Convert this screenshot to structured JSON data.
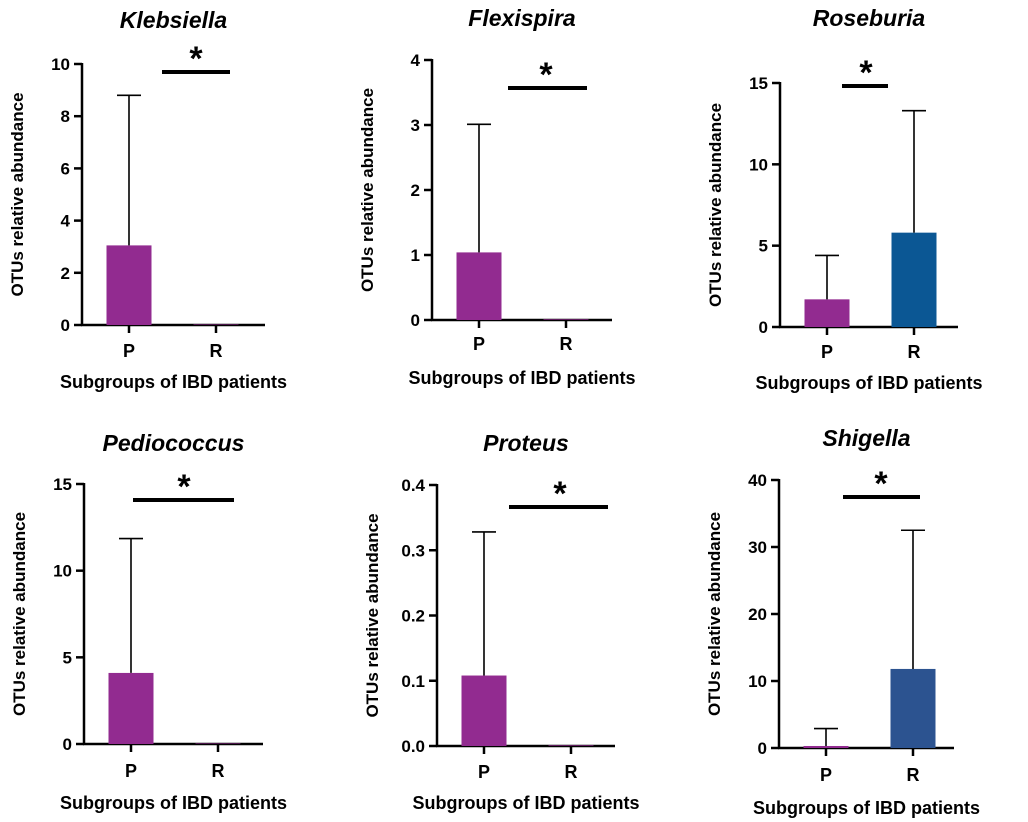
{
  "chart_data": [
    {
      "type": "bar",
      "title": "Klebsiella",
      "xlabel": "Subgroups of IBD patients",
      "ylabel": "OTUs relative abundance",
      "categories": [
        "P",
        "R"
      ],
      "values": [
        3.05,
        0.02
      ],
      "error_upper": [
        8.8,
        0.02
      ],
      "ylim": [
        0,
        10
      ],
      "yticks": [
        0,
        2,
        4,
        6,
        8,
        10
      ],
      "ytick_labels": [
        "0",
        "2",
        "4",
        "6",
        "8",
        "10"
      ],
      "significance": "*",
      "colors": [
        "#922B90",
        "#922B90"
      ],
      "grid": false,
      "legend": "none"
    },
    {
      "type": "bar",
      "title": "Flexispira",
      "xlabel": "Subgroups of IBD patients",
      "ylabel": "OTUs relative abundance",
      "categories": [
        "P",
        "R"
      ],
      "values": [
        1.04,
        0.01
      ],
      "error_upper": [
        3.01,
        0.01
      ],
      "ylim": [
        0,
        4
      ],
      "yticks": [
        0,
        1,
        2,
        3,
        4
      ],
      "ytick_labels": [
        "0",
        "1",
        "2",
        "3",
        "4"
      ],
      "significance": "*",
      "colors": [
        "#922B90",
        "#922B90"
      ],
      "grid": false,
      "legend": "none"
    },
    {
      "type": "bar",
      "title": "Roseburia",
      "xlabel": "Subgroups of IBD patients",
      "ylabel": "OTUs relative abundance",
      "categories": [
        "P",
        "R"
      ],
      "values": [
        1.7,
        5.8
      ],
      "error_upper": [
        4.4,
        13.3
      ],
      "ylim": [
        0,
        15
      ],
      "yticks": [
        0,
        5,
        10,
        15
      ],
      "ytick_labels": [
        "0",
        "5",
        "10",
        "15"
      ],
      "significance": "*",
      "colors": [
        "#922B90",
        "#0B5794"
      ],
      "grid": false,
      "legend": "none"
    },
    {
      "type": "bar",
      "title": "Pediococcus",
      "xlabel": "Subgroups of IBD patients",
      "ylabel": "OTUs relative abundance",
      "categories": [
        "P",
        "R"
      ],
      "values": [
        4.1,
        0.03
      ],
      "error_upper": [
        11.85,
        0.03
      ],
      "ylim": [
        0,
        15
      ],
      "yticks": [
        0,
        5,
        10,
        15
      ],
      "ytick_labels": [
        "0",
        "5",
        "10",
        "15"
      ],
      "significance": "*",
      "colors": [
        "#922B90",
        "#922B90"
      ],
      "grid": false,
      "legend": "none"
    },
    {
      "type": "bar",
      "title": "Proteus",
      "xlabel": "Subgroups of IBD patients",
      "ylabel": "OTUs relative abundance",
      "categories": [
        "P",
        "R"
      ],
      "values": [
        0.108,
        0.001
      ],
      "error_upper": [
        0.328,
        0.001
      ],
      "ylim": [
        0,
        0.4
      ],
      "yticks": [
        0,
        0.1,
        0.2,
        0.3,
        0.4
      ],
      "ytick_labels": [
        "0.0",
        "0.1",
        "0.2",
        "0.3",
        "0.4"
      ],
      "significance": "*",
      "colors": [
        "#922B90",
        "#922B90"
      ],
      "grid": false,
      "legend": "none"
    },
    {
      "type": "bar",
      "title": "Shigella",
      "xlabel": "Subgroups of IBD patients",
      "ylabel": "OTUs relative abundance",
      "categories": [
        "P",
        "R"
      ],
      "values": [
        0.3,
        11.8
      ],
      "error_upper": [
        2.9,
        32.5
      ],
      "ylim": [
        0,
        40
      ],
      "yticks": [
        0,
        10,
        20,
        30,
        40
      ],
      "ytick_labels": [
        "0",
        "10",
        "20",
        "30",
        "40"
      ],
      "significance": "*",
      "colors": [
        "#922B90",
        "#2C5390"
      ],
      "grid": false,
      "legend": "none"
    }
  ]
}
